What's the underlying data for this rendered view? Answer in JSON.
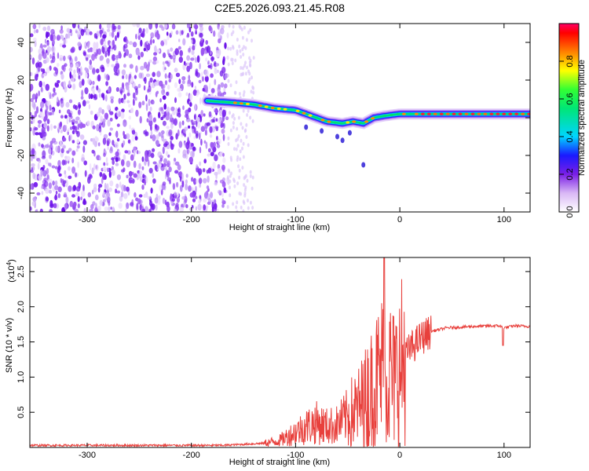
{
  "title": "C2E5.2026.093.21.45.R08",
  "chart_data": [
    {
      "type": "heatmap",
      "xlabel": "Height of straight line (km)",
      "ylabel": "Frequency (Hz)",
      "xlim": [
        -355,
        125
      ],
      "ylim": [
        -50,
        50
      ],
      "xticks": [
        -300,
        -200,
        -100,
        0,
        100
      ],
      "yticks": [
        -40,
        -20,
        0,
        20,
        40
      ],
      "colorbar": {
        "label": "Normalized spectral amplitude",
        "range": [
          0,
          1
        ],
        "ticks": [
          "0.0",
          "0.2",
          "0.4",
          "0.6",
          "0.8"
        ]
      },
      "ridge": [
        {
          "x": -185,
          "f": 9
        },
        {
          "x": -160,
          "f": 8
        },
        {
          "x": -140,
          "f": 7
        },
        {
          "x": -120,
          "f": 5
        },
        {
          "x": -100,
          "f": 4
        },
        {
          "x": -85,
          "f": 1
        },
        {
          "x": -70,
          "f": -2
        },
        {
          "x": -55,
          "f": -3
        },
        {
          "x": -45,
          "f": -2
        },
        {
          "x": -35,
          "f": -3
        },
        {
          "x": -25,
          "f": 0
        },
        {
          "x": -15,
          "f": 1
        },
        {
          "x": 0,
          "f": 2
        },
        {
          "x": 20,
          "f": 2
        },
        {
          "x": 50,
          "f": 2
        },
        {
          "x": 80,
          "f": 2
        },
        {
          "x": 100,
          "f": 2
        },
        {
          "x": 125,
          "f": 2
        }
      ],
      "noise_region_x": [
        -355,
        -165
      ]
    },
    {
      "type": "line",
      "xlabel": "Height of straight line (km)",
      "ylabel": "SNR (10 * v/v)",
      "yscale_label": "(x10",
      "yscale_exp": "4",
      "yscale_close": ")",
      "xlim": [
        -355,
        125
      ],
      "ylim": [
        0,
        2.7
      ],
      "xticks": [
        -300,
        -200,
        -100,
        0,
        100
      ],
      "yticks": [
        "0.5",
        "1.0",
        "1.5",
        "2.0",
        "2.5"
      ],
      "series": [
        {
          "name": "SNR",
          "color": "#e8403c",
          "points": [
            [
              -355,
              0.03
            ],
            [
              -250,
              0.03
            ],
            [
              -170,
              0.03
            ],
            [
              -130,
              0.06
            ],
            [
              -115,
              0.1
            ],
            [
              -100,
              0.22
            ],
            [
              -90,
              0.3
            ],
            [
              -80,
              0.35
            ],
            [
              -70,
              0.3
            ],
            [
              -60,
              0.32
            ],
            [
              -50,
              0.45
            ],
            [
              -40,
              0.55
            ],
            [
              -30,
              0.75
            ],
            [
              -22,
              0.95
            ],
            [
              -16,
              1.1
            ],
            [
              -10,
              1.05
            ],
            [
              -5,
              0.95
            ],
            [
              0,
              1.1
            ],
            [
              5,
              1.3
            ],
            [
              10,
              1.4
            ],
            [
              20,
              1.55
            ],
            [
              30,
              1.65
            ],
            [
              45,
              1.7
            ],
            [
              70,
              1.72
            ],
            [
              95,
              1.73
            ],
            [
              100,
              1.7
            ],
            [
              110,
              1.73
            ],
            [
              125,
              1.72
            ]
          ]
        }
      ]
    }
  ]
}
